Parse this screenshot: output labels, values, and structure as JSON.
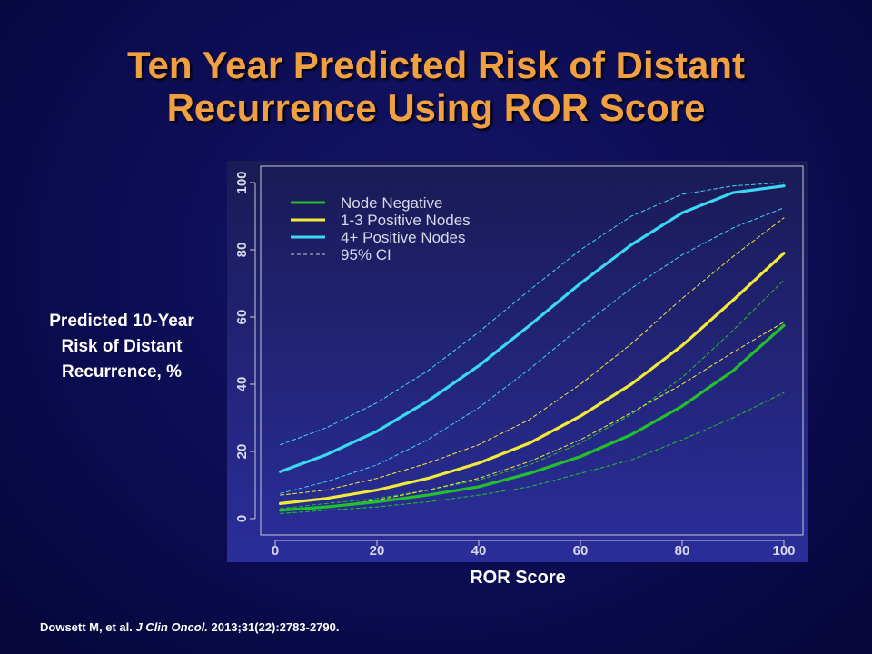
{
  "slide": {
    "title_lines": [
      "Ten Year Predicted Risk of Distant",
      "Recurrence Using ROR Score"
    ],
    "citation": {
      "authors": "Dowsett M, et al. ",
      "journal": "J Clin Oncol.",
      "details": " 2013;31(22):2783-2790."
    }
  },
  "colors": {
    "title": "#f0a040",
    "node_negative": "#22c02a",
    "one_three_positive": "#f2ea38",
    "four_plus_positive": "#3ad8f2",
    "ci_lines": "dashed"
  },
  "chart_data": {
    "type": "line",
    "title": "",
    "xlabel": "ROR Score",
    "ylabel_lines": [
      "Predicted 10-Year",
      "Risk of Distant",
      "Recurrence, %"
    ],
    "xlim": [
      0,
      100
    ],
    "ylim": [
      0,
      100
    ],
    "xticks": [
      "0",
      "20",
      "40",
      "60",
      "80",
      "100"
    ],
    "yticks": [
      "0",
      "20",
      "40",
      "60",
      "80",
      "100"
    ],
    "grid": false,
    "legend_placement": "top-left",
    "legend": [
      "Node Negative",
      "1-3 Positive Nodes",
      "4+ Positive Nodes",
      "95% CI"
    ],
    "x": [
      1,
      10,
      20,
      30,
      40,
      50,
      60,
      70,
      80,
      90,
      100
    ],
    "series": [
      {
        "name": "Node Negative",
        "style": "solid",
        "color": "#22c02a",
        "values": [
          2.5,
          3.5,
          5,
          7,
          9.5,
          13.5,
          18.5,
          25,
          33.5,
          44,
          57.5
        ]
      },
      {
        "name": "Node Negative",
        "style": "ci-upper",
        "color": "#22c02a",
        "values": [
          3,
          4.5,
          6,
          8.5,
          11.5,
          16,
          22.5,
          31,
          42,
          56,
          71
        ]
      },
      {
        "name": "Node Negative",
        "style": "ci-lower",
        "color": "#22c02a",
        "values": [
          1.5,
          2.5,
          3.5,
          5,
          7,
          9.5,
          13.5,
          17.5,
          23.5,
          30,
          37.5
        ]
      },
      {
        "name": "1-3 Positive Nodes",
        "style": "solid",
        "color": "#f2ea38",
        "values": [
          4.5,
          6,
          8.5,
          12,
          16.5,
          22.5,
          30.5,
          40,
          51.5,
          65,
          79
        ]
      },
      {
        "name": "1-3 Positive Nodes",
        "style": "ci-upper",
        "color": "#f2ea38",
        "values": [
          7,
          8.5,
          12,
          16.5,
          22,
          29.5,
          40,
          52,
          65.5,
          78,
          89.5
        ]
      },
      {
        "name": "1-3 Positive Nodes",
        "style": "ci-lower",
        "color": "#f2ea38",
        "values": [
          2.5,
          3.5,
          5.5,
          8.5,
          12,
          17,
          23.5,
          31.5,
          40,
          49.5,
          58.5
        ]
      },
      {
        "name": "4+ Positive Nodes",
        "style": "solid",
        "color": "#3ad8f2",
        "values": [
          14,
          19,
          26,
          35,
          45.5,
          57.5,
          70,
          81.5,
          91,
          97,
          99
        ]
      },
      {
        "name": "4+ Positive Nodes",
        "style": "ci-upper",
        "color": "#3ad8f2",
        "values": [
          22,
          27,
          34.5,
          44,
          55.5,
          68,
          80,
          90,
          96.5,
          99,
          100
        ]
      },
      {
        "name": "4+ Positive Nodes",
        "style": "ci-lower",
        "color": "#3ad8f2",
        "values": [
          7.5,
          11,
          16,
          23.5,
          33,
          44.5,
          57,
          68.5,
          78.5,
          86.5,
          92.5
        ]
      }
    ]
  }
}
